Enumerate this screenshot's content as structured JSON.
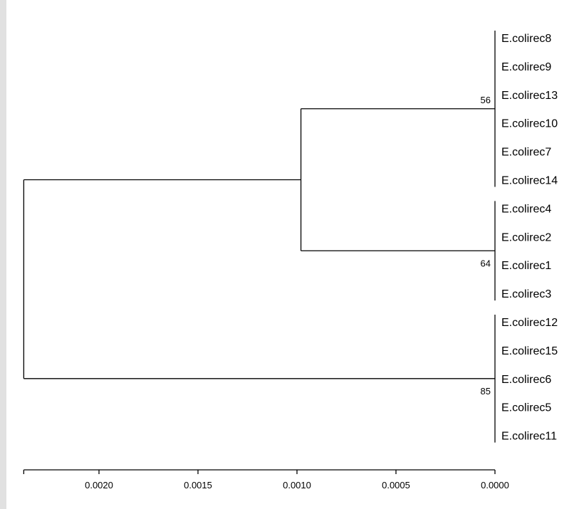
{
  "tree": {
    "leaves": [
      "E.colirec8",
      "E.colirec9",
      "E.colirec13",
      "E.colirec10",
      "E.colirec7",
      "E.colirec14",
      "E.colirec4",
      "E.colirec2",
      "E.colirec1",
      "E.colirec3",
      "E.colirec12",
      "E.colirec15",
      "E.colirec6",
      "E.colirec5",
      "E.colirec11"
    ],
    "clades": [
      {
        "support": "56",
        "members": [
          "E.colirec8",
          "E.colirec9",
          "E.colirec13",
          "E.colirec10",
          "E.colirec7",
          "E.colirec14"
        ],
        "node_depth": 0.0
      },
      {
        "support": "64",
        "members": [
          "E.colirec4",
          "E.colirec2",
          "E.colirec1",
          "E.colirec3"
        ],
        "node_depth": 0.0
      },
      {
        "support": "85",
        "members": [
          "E.colirec12",
          "E.colirec15",
          "E.colirec6",
          "E.colirec5",
          "E.colirec11"
        ],
        "node_depth": 0.0
      }
    ],
    "internal_node_depth": 0.00098,
    "root_depth": 0.00238
  },
  "axis": {
    "ticks": [
      {
        "value": 0.002,
        "label": "0.0020"
      },
      {
        "value": 0.0015,
        "label": "0.0015"
      },
      {
        "value": 0.001,
        "label": "0.0010"
      },
      {
        "value": 0.0005,
        "label": "0.0005"
      },
      {
        "value": 0.0,
        "label": "0.0000"
      }
    ],
    "range": [
      0.00238,
      0.0
    ]
  }
}
